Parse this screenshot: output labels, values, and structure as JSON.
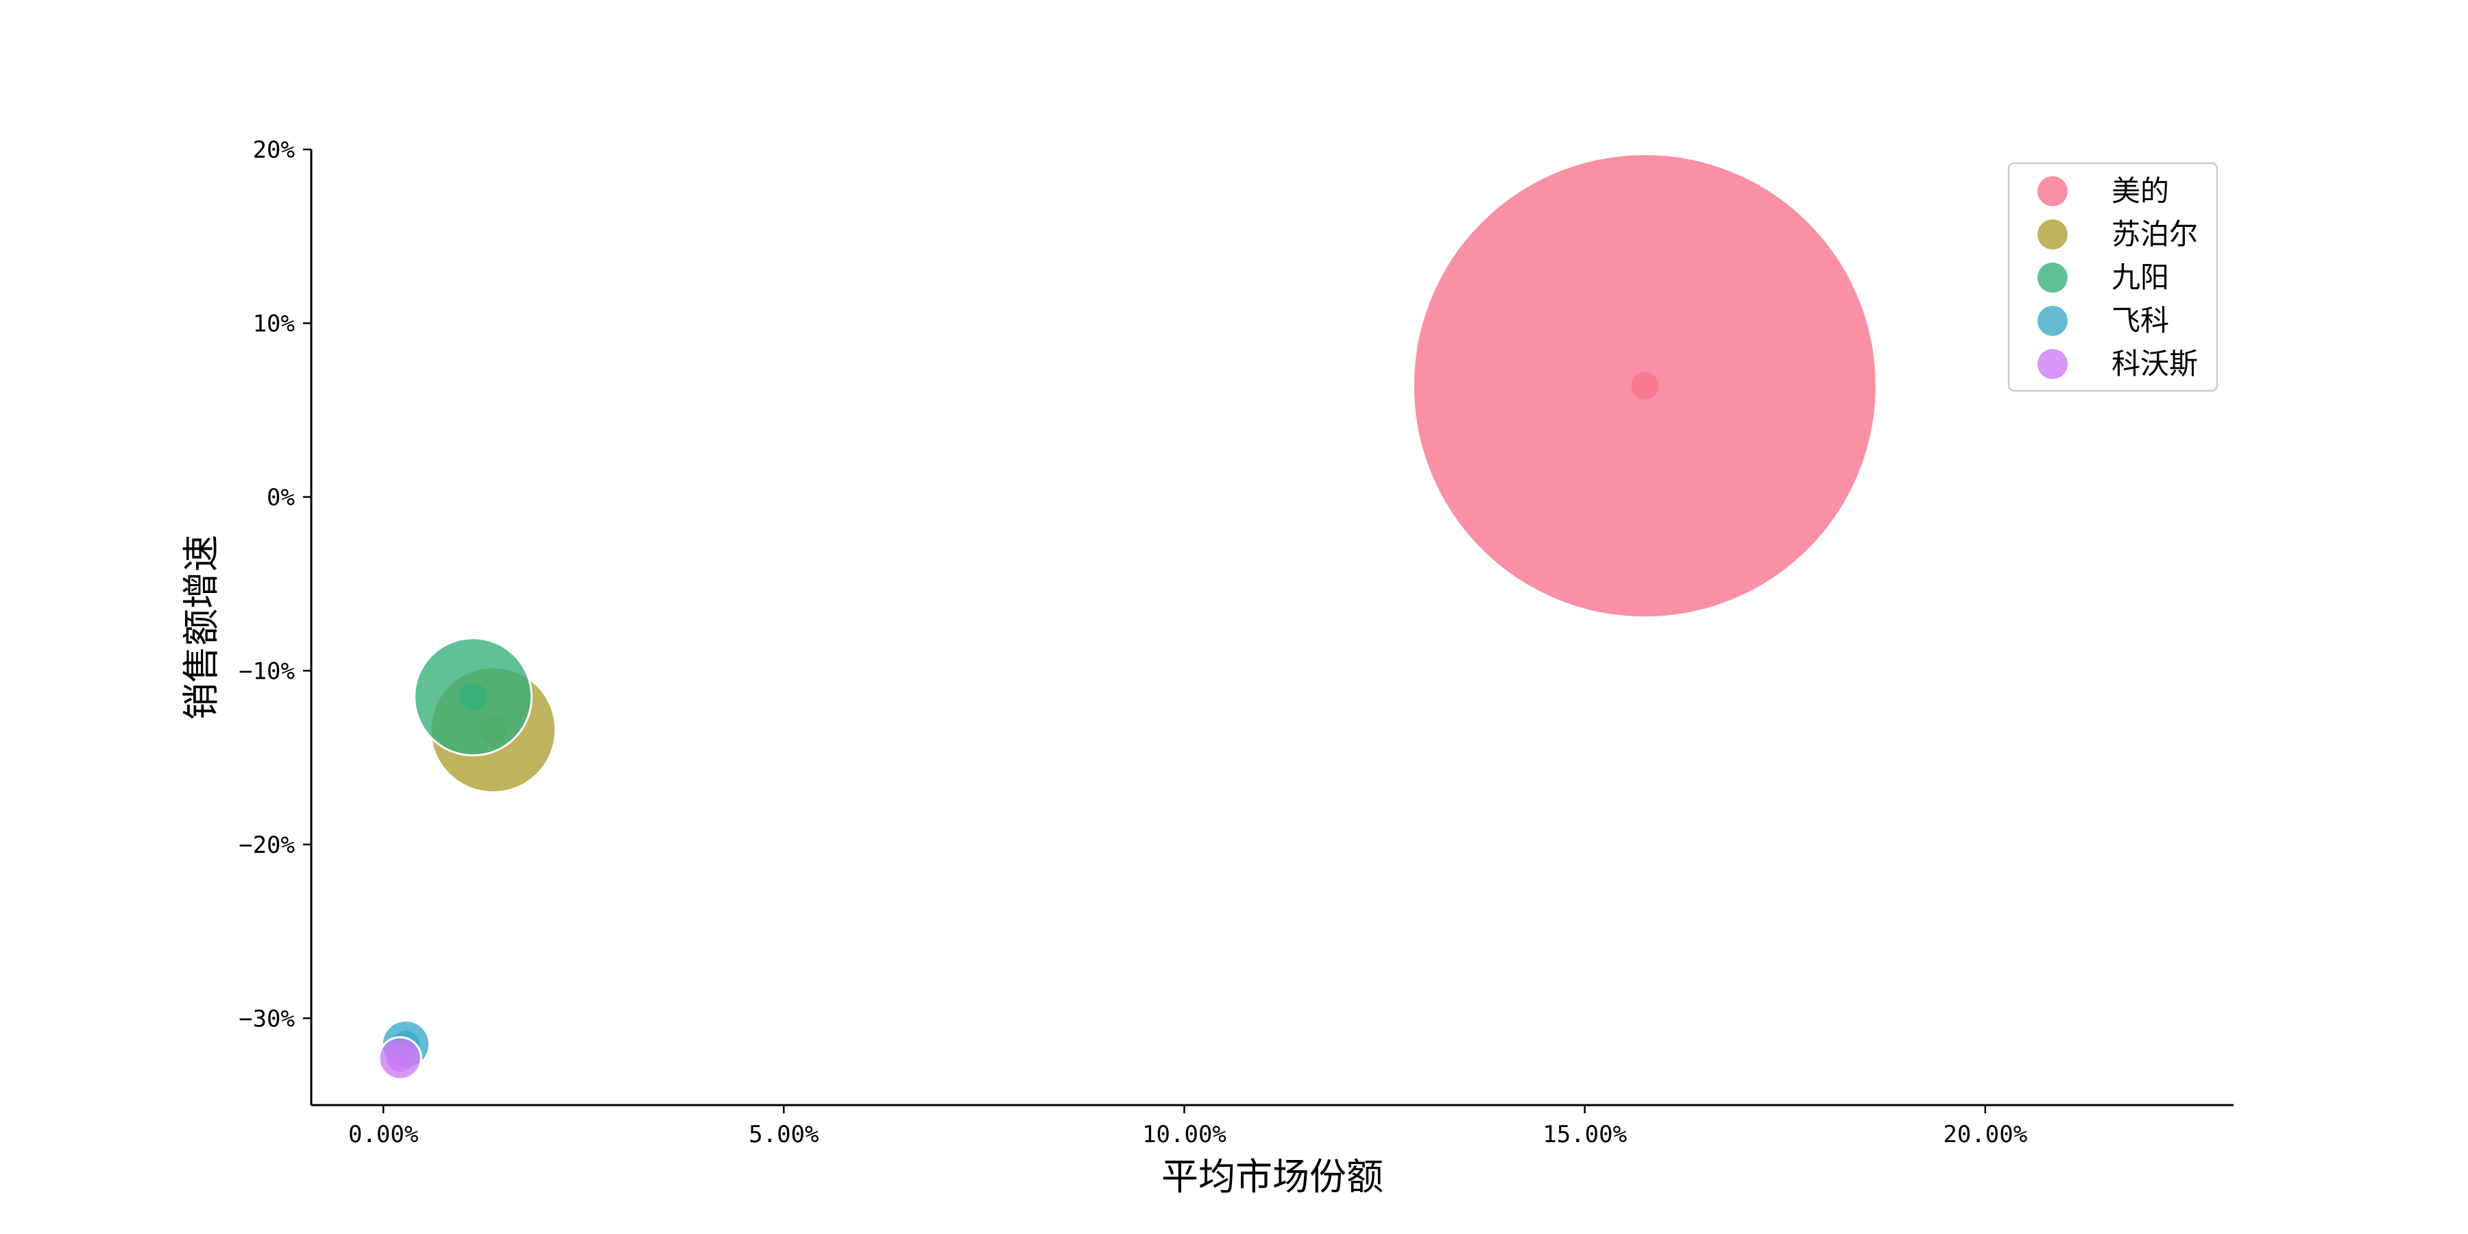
{
  "chart_data": {
    "type": "scatter",
    "variant": "bubble",
    "title": "",
    "xlabel": "平均市场份额",
    "ylabel": "销售额增速",
    "xlim": [
      -0.009,
      0.231
    ],
    "ylim": [
      -0.35,
      0.2
    ],
    "x_ticks": [
      0.0,
      0.05,
      0.1,
      0.15,
      0.2
    ],
    "x_tick_labels": [
      "0.00%",
      "5.00%",
      "10.00%",
      "15.00%",
      "20.00%"
    ],
    "y_ticks": [
      -0.3,
      -0.2,
      -0.1,
      0.0,
      0.1,
      0.2
    ],
    "y_tick_labels": [
      "−30%",
      "−20%",
      "−10%",
      "0%",
      "10%",
      "20%"
    ],
    "grid": false,
    "legend_position": "top-right",
    "series": [
      {
        "name": "美的",
        "color": "#f77189",
        "x": 0.1575,
        "y": 0.064,
        "size": 100
      },
      {
        "name": "苏泊尔",
        "color": "#ae9d31",
        "x": 0.0137,
        "y": -0.134,
        "size": 7.3
      },
      {
        "name": "九阳",
        "color": "#33b07a",
        "x": 0.0112,
        "y": -0.115,
        "size": 6.4
      },
      {
        "name": "飞科",
        "color": "#38a9c5",
        "x": 0.0028,
        "y": -0.315,
        "size": 1.05
      },
      {
        "name": "科沃斯",
        "color": "#cc7af4",
        "x": 0.0021,
        "y": -0.323,
        "size": 0.82
      }
    ]
  }
}
